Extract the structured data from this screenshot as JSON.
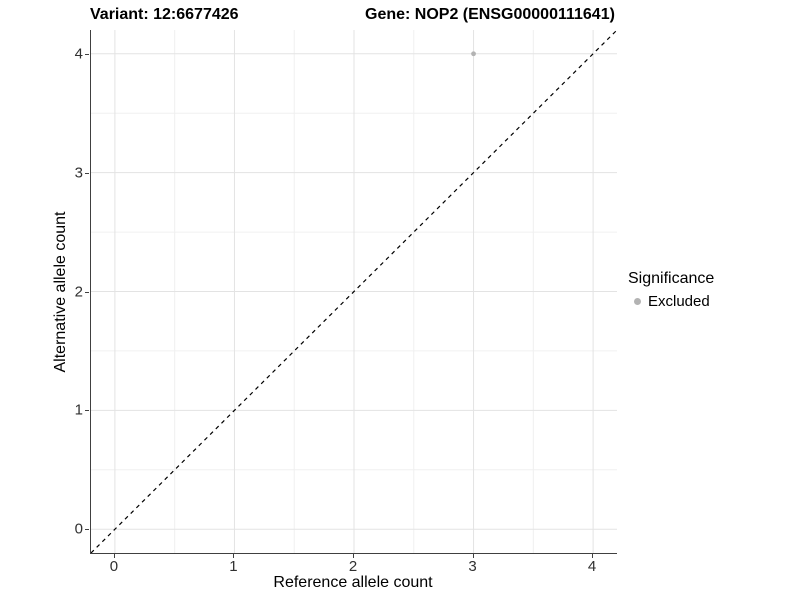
{
  "titles": {
    "variant": "Variant: 12:6677426",
    "gene": "Gene: NOP2 (ENSG00000111641)"
  },
  "chart_data": {
    "type": "scatter",
    "title_left": "Variant: 12:6677426",
    "title_right": "Gene: NOP2 (ENSG00000111641)",
    "xlabel": "Reference allele count",
    "ylabel": "Alternative allele count",
    "xlim": [
      -0.2,
      4.2
    ],
    "ylim": [
      -0.2,
      4.2
    ],
    "x_ticks": [
      0,
      1,
      2,
      3,
      4
    ],
    "y_ticks": [
      0,
      1,
      2,
      3,
      4
    ],
    "x_minor_gridlines": [
      0.5,
      1.5,
      2.5,
      3.5
    ],
    "y_minor_gridlines": [
      0.5,
      1.5,
      2.5,
      3.5
    ],
    "grid": true,
    "series": [
      {
        "name": "Excluded",
        "color": "#b3b3b3",
        "points": [
          {
            "x": 3,
            "y": 4
          }
        ]
      }
    ],
    "reference_line": {
      "type": "identity",
      "from": [
        -0.2,
        -0.2
      ],
      "to": [
        4.2,
        4.2
      ],
      "style": "dashed",
      "color": "#000000"
    },
    "legend": {
      "title": "Significance",
      "position": "right",
      "entries": [
        {
          "label": "Excluded",
          "color": "#b3b3b3"
        }
      ]
    }
  },
  "colors": {
    "background": "#ffffff",
    "grid_major": "#e3e3e3",
    "grid_minor": "#f0f0f0",
    "axis_line": "#404040",
    "tick_text": "#303030",
    "title_text": "#000000",
    "point": "#b3b3b3"
  }
}
